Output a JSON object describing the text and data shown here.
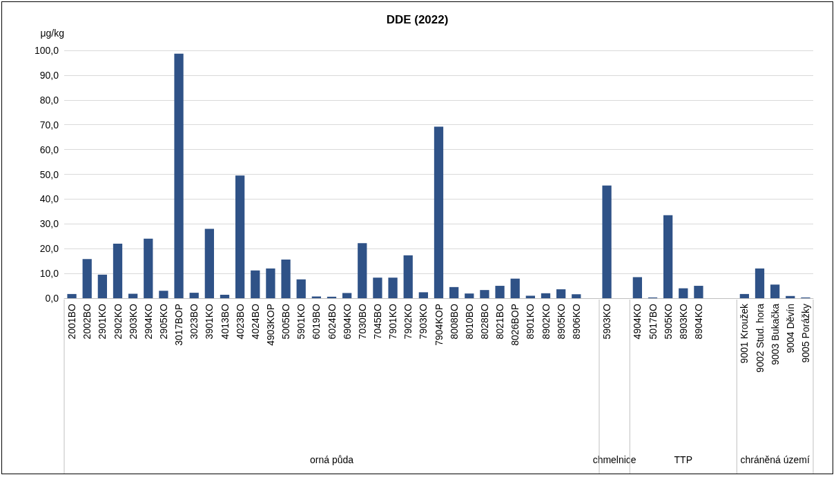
{
  "chart_data": {
    "type": "bar",
    "title": "DDE (2022)",
    "ylabel": "μg/kg",
    "categories": [
      "2001BO",
      "2002BO",
      "2901KO",
      "2902KO",
      "2903KO",
      "2904KO",
      "2905KO",
      "3017BOP",
      "3023BO",
      "3901KO",
      "4013BO",
      "4023BO",
      "4024BO",
      "4903KOP",
      "5005BO",
      "5901KO",
      "6019BO",
      "6024BO",
      "6904KO",
      "7030BO",
      "7045BO",
      "7901KO",
      "7902KO",
      "7903KO",
      "7904KOP",
      "8008BO",
      "8010BO",
      "8028BO",
      "8021BO",
      "8026BOP",
      "8901KO",
      "8902KO",
      "8905KO",
      "8906KO",
      null,
      "5903KO",
      null,
      "4904KO",
      "5017BO",
      "5905KO",
      "8903KO",
      "8904KO",
      null,
      null,
      "9001 Kroužek",
      "9002 Stud. hora",
      "9003 Bukačka",
      "9004 Děvín",
      "9005 Porážky"
    ],
    "values": [
      1.7,
      15.8,
      9.5,
      22,
      1.8,
      24,
      3,
      98.7,
      2.2,
      28,
      1.4,
      49.5,
      11.2,
      12,
      15.6,
      7.6,
      0.7,
      0.6,
      2.1,
      22.2,
      8.3,
      8.3,
      17.3,
      2.4,
      69.2,
      4.5,
      1.9,
      3.3,
      5,
      7.9,
      1,
      2,
      3.6,
      1.6,
      null,
      45.5,
      null,
      8.5,
      0.3,
      33.5,
      4,
      5,
      null,
      null,
      1.7,
      12,
      5.5,
      0.9,
      0.3
    ],
    "color": "#2f5287",
    "ylim": [
      0,
      100
    ],
    "yticks": [
      {
        "value": 0,
        "label": "0,0"
      },
      {
        "value": 10,
        "label": "10,0"
      },
      {
        "value": 20,
        "label": "20,0"
      },
      {
        "value": 30,
        "label": "30,0"
      },
      {
        "value": 40,
        "label": "40,0"
      },
      {
        "value": 50,
        "label": "50,0"
      },
      {
        "value": 60,
        "label": "60,0"
      },
      {
        "value": 70,
        "label": "70,0"
      },
      {
        "value": 80,
        "label": "80,0"
      },
      {
        "value": 90,
        "label": "90,0"
      },
      {
        "value": 100,
        "label": "100,0"
      }
    ],
    "grid": "y",
    "annotations": [
      "orná půda",
      "chmelnice",
      "TTP",
      "chráněná území"
    ]
  }
}
